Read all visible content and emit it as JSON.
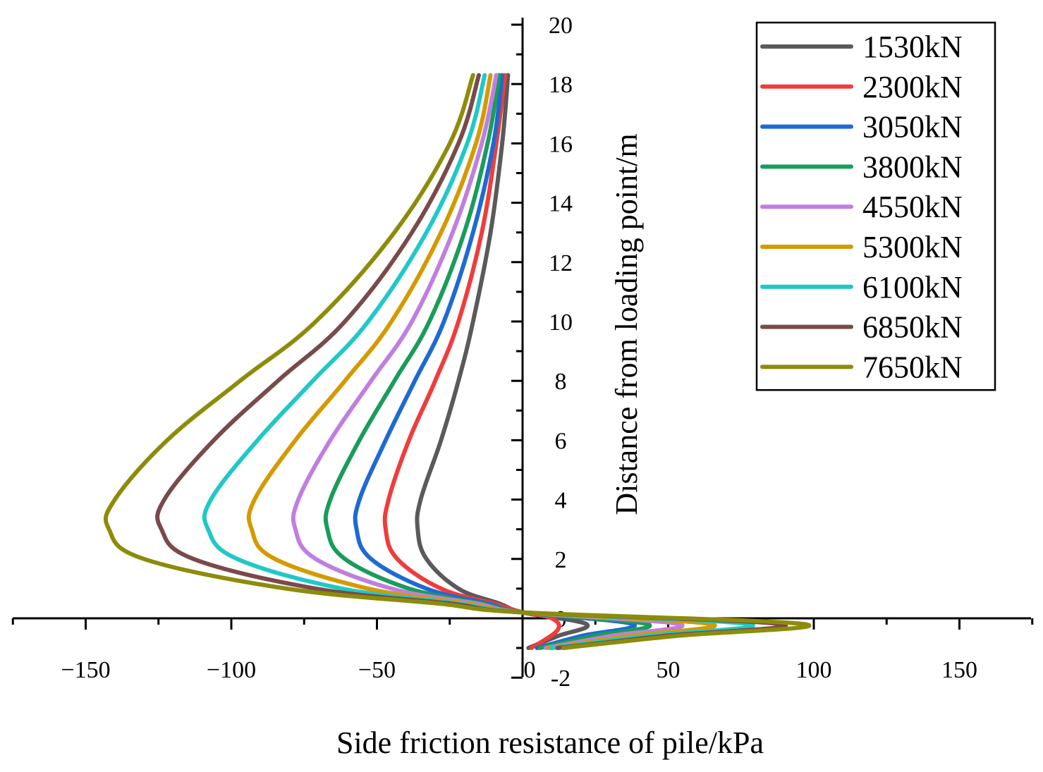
{
  "chart_data": {
    "type": "line",
    "title": "",
    "xlabel": "Side friction resistance of pile/kPa",
    "ylabel": "Distance from loading point/m",
    "xlim": [
      -175,
      175
    ],
    "ylim": [
      -2,
      20
    ],
    "x_ticks": [
      -150,
      -100,
      -50,
      0,
      50,
      100,
      150
    ],
    "x_tick_labels": [
      "−150",
      "−100",
      "−50",
      "0",
      "50",
      "100",
      "150"
    ],
    "y_ticks": [
      -2,
      0,
      2,
      4,
      6,
      8,
      10,
      12,
      14,
      16,
      18,
      20
    ],
    "y_tick_labels": [
      "-2",
      "0",
      "2",
      "4",
      "6",
      "8",
      "10",
      "12",
      "14",
      "16",
      "18",
      "20"
    ],
    "grid": false,
    "legend_position": "top-right",
    "series": [
      {
        "name": "1530kN",
        "color": "#5a5a5a",
        "y": [
          18.3,
          16,
          13,
          10,
          8,
          6,
          4,
          3,
          2,
          1,
          0.5,
          0.2,
          -0.2,
          -0.6,
          -1.0
        ],
        "x": [
          -5,
          -7,
          -11,
          -17,
          -22,
          -28,
          -35,
          -36,
          -33,
          -22,
          -8,
          0,
          22,
          12,
          2
        ]
      },
      {
        "name": "2300kN",
        "color": "#f03c3c",
        "y": [
          18.3,
          16,
          13,
          10,
          8,
          6,
          4,
          3,
          2,
          1,
          0.5,
          0.2,
          0.0,
          -0.4,
          -1.0
        ],
        "x": [
          -6,
          -9,
          -14,
          -22,
          -30,
          -39,
          -46,
          -47,
          -43,
          -28,
          -10,
          0,
          10,
          12,
          3
        ]
      },
      {
        "name": "3050kN",
        "color": "#1e6ad2",
        "y": [
          18.3,
          16,
          13,
          10,
          8,
          6,
          4,
          3,
          2,
          1,
          0.5,
          0.2,
          -0.2,
          -0.6,
          -1.0
        ],
        "x": [
          -7,
          -10,
          -17,
          -27,
          -37,
          -47,
          -56,
          -57,
          -52,
          -33,
          -12,
          0,
          38,
          20,
          5
        ]
      },
      {
        "name": "3800kN",
        "color": "#1a9c5a",
        "y": [
          18.3,
          16,
          13,
          10,
          8,
          6,
          4,
          3,
          2,
          1,
          0.5,
          0.2,
          -0.2,
          -0.6,
          -1.0
        ],
        "x": [
          -8,
          -12,
          -20,
          -32,
          -44,
          -56,
          -66,
          -67,
          -61,
          -39,
          -14,
          0,
          43,
          24,
          6
        ]
      },
      {
        "name": "4550kN",
        "color": "#c07ee0",
        "y": [
          18.3,
          16,
          13,
          10,
          8,
          6,
          4,
          3,
          2,
          1,
          0.5,
          0.2,
          -0.2,
          -0.6,
          -1.0
        ],
        "x": [
          -9,
          -14,
          -24,
          -38,
          -52,
          -66,
          -77,
          -78,
          -71,
          -45,
          -16,
          0,
          54,
          30,
          8
        ]
      },
      {
        "name": "5300kN",
        "color": "#d49a00",
        "y": [
          18.3,
          16,
          13,
          10,
          8,
          6,
          4,
          3,
          2,
          1,
          0.5,
          0.2,
          -0.2,
          -0.6,
          -1.0
        ],
        "x": [
          -11,
          -16,
          -28,
          -45,
          -61,
          -78,
          -92,
          -93,
          -85,
          -53,
          -19,
          0,
          65,
          36,
          9
        ]
      },
      {
        "name": "6100kN",
        "color": "#20c8c8",
        "y": [
          18.3,
          16,
          13,
          10,
          8,
          6,
          4,
          3,
          2,
          1,
          0.5,
          0.2,
          -0.2,
          -0.6,
          -1.0
        ],
        "x": [
          -13,
          -19,
          -33,
          -53,
          -72,
          -91,
          -107,
          -108,
          -98,
          -62,
          -22,
          0,
          78,
          42,
          10
        ]
      },
      {
        "name": "6850kN",
        "color": "#7a4a4a",
        "y": [
          18.3,
          16,
          13,
          10,
          8,
          6,
          4,
          3,
          2,
          1,
          0.5,
          0.2,
          -0.2,
          -0.6,
          -1.0
        ],
        "x": [
          -15,
          -22,
          -38,
          -61,
          -84,
          -106,
          -123,
          -124,
          -113,
          -71,
          -25,
          0,
          89,
          48,
          12
        ]
      },
      {
        "name": "7650kN",
        "color": "#8c8c0a",
        "y": [
          18.3,
          16,
          13,
          10,
          8,
          6,
          4,
          3,
          2,
          1,
          0.5,
          0.2,
          -0.2,
          -0.6,
          -1.0
        ],
        "x": [
          -17,
          -25,
          -44,
          -71,
          -97,
          -122,
          -140,
          -142,
          -130,
          -81,
          -29,
          0,
          97,
          52,
          14
        ]
      }
    ]
  }
}
